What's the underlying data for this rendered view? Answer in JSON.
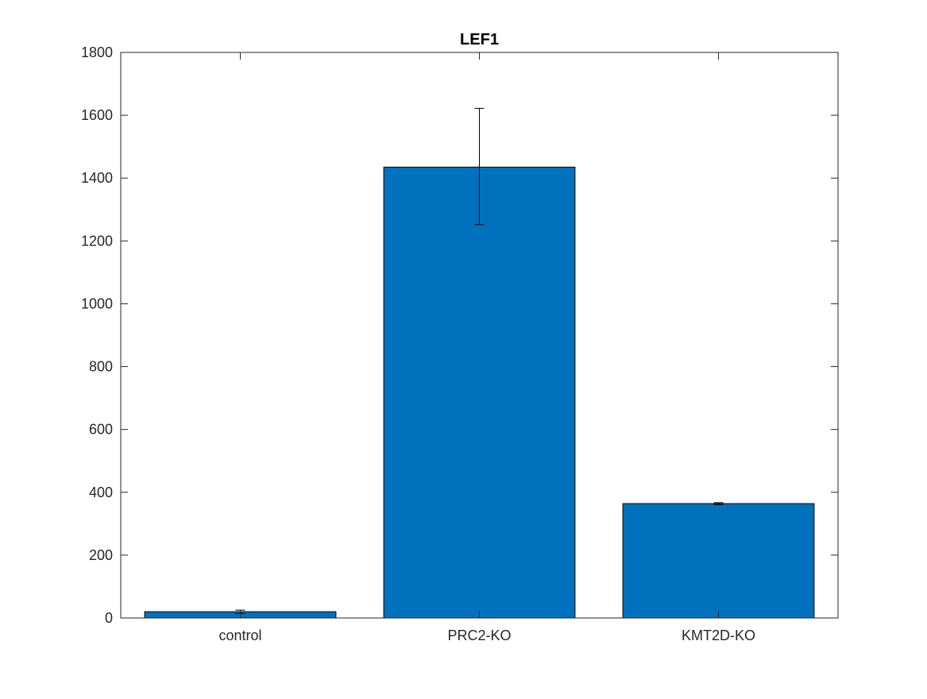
{
  "chart_data": {
    "type": "bar",
    "title": "LEF1",
    "xlabel": "",
    "ylabel": "",
    "categories": [
      "control",
      "PRC2-KO",
      "KMT2D-KO"
    ],
    "values": [
      20,
      1435,
      364
    ],
    "error_bars": {
      "lower": [
        14,
        1252,
        361
      ],
      "upper": [
        25,
        1622,
        367
      ]
    },
    "ylim": [
      0,
      1800
    ],
    "yticks": [
      0,
      200,
      400,
      600,
      800,
      1000,
      1200,
      1400,
      1600,
      1800
    ],
    "grid": false,
    "legend": "none",
    "bar_color": "#0072bd",
    "edge_color": "#000000"
  }
}
